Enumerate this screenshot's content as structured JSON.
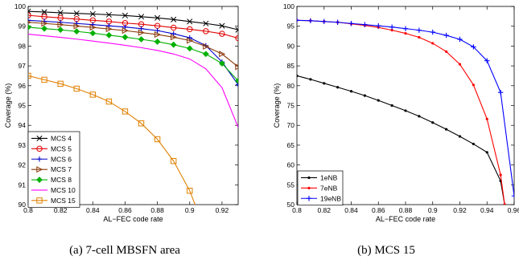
{
  "chart_data": [
    {
      "type": "line",
      "caption": "(a) 7-cell MBSFN area",
      "xlabel": "AL−FEC code rate",
      "ylabel": "Coverage (%)",
      "xlim": [
        0.8,
        0.93
      ],
      "ylim": [
        90,
        100
      ],
      "xticks": [
        "0.8",
        "0.82",
        "0.84",
        "0.86",
        "0.88",
        "0.9",
        "0.92"
      ],
      "yticks": [
        "90",
        "91",
        "92",
        "93",
        "94",
        "95",
        "96",
        "97",
        "98",
        "99",
        "100"
      ],
      "grid": false,
      "legend": "bottom-left",
      "x": [
        0.8,
        0.81,
        0.82,
        0.83,
        0.84,
        0.85,
        0.86,
        0.87,
        0.88,
        0.89,
        0.9,
        0.91,
        0.92,
        0.93
      ],
      "series": [
        {
          "name": "MCS 4",
          "color": "#000000",
          "marker": "x",
          "values": [
            99.75,
            99.72,
            99.68,
            99.65,
            99.62,
            99.58,
            99.54,
            99.48,
            99.42,
            99.34,
            99.24,
            99.14,
            99.02,
            98.82
          ]
        },
        {
          "name": "MCS 5",
          "color": "#e00000",
          "marker": "circle",
          "values": [
            99.55,
            99.48,
            99.42,
            99.36,
            99.3,
            99.24,
            99.16,
            99.1,
            99.02,
            98.93,
            98.85,
            98.75,
            98.62,
            98.4
          ]
        },
        {
          "name": "MCS 6",
          "color": "#0000cc",
          "marker": "plus",
          "values": [
            99.3,
            99.25,
            99.2,
            99.14,
            99.08,
            99.02,
            98.96,
            98.88,
            98.78,
            98.62,
            98.42,
            98.02,
            97.2,
            96.05
          ]
        },
        {
          "name": "MCS 7",
          "color": "#8b3a0a",
          "marker": "triangle",
          "values": [
            99.2,
            99.14,
            99.08,
            99.01,
            98.94,
            98.86,
            98.78,
            98.68,
            98.58,
            98.45,
            98.28,
            97.98,
            97.6,
            96.95
          ]
        },
        {
          "name": "MCS 8",
          "color": "#00b000",
          "marker": "diamond",
          "values": [
            98.95,
            98.88,
            98.82,
            98.74,
            98.65,
            98.55,
            98.45,
            98.34,
            98.22,
            98.07,
            97.88,
            97.6,
            97.12,
            96.25
          ]
        },
        {
          "name": "MCS 10",
          "color": "#ff00ff",
          "marker": "none",
          "values": [
            98.6,
            98.52,
            98.44,
            98.35,
            98.25,
            98.15,
            98.04,
            97.92,
            97.78,
            97.6,
            97.35,
            96.85,
            95.9,
            93.9
          ]
        },
        {
          "name": "MCS 15",
          "color": "#e08000",
          "marker": "square",
          "values": [
            96.5,
            96.3,
            96.1,
            95.85,
            95.55,
            95.2,
            94.7,
            94.1,
            93.3,
            92.2,
            90.7,
            88.6,
            null,
            null
          ]
        }
      ]
    },
    {
      "type": "line",
      "caption": "(b) MCS 15",
      "xlabel": "AL−FEC code rate",
      "ylabel": "Coverage (%)",
      "xlim": [
        0.8,
        0.96
      ],
      "ylim": [
        50,
        100
      ],
      "xticks": [
        "0.8",
        "0.82",
        "0.84",
        "0.86",
        "0.88",
        "0.9",
        "0.92",
        "0.94",
        "0.96"
      ],
      "yticks": [
        "50",
        "55",
        "60",
        "65",
        "70",
        "75",
        "80",
        "85",
        "90",
        "95",
        "100"
      ],
      "grid": false,
      "legend": "bottom-left",
      "series": [
        {
          "name": "1eNB",
          "color": "#000000",
          "marker": "dot",
          "x": [
            0.8,
            0.81,
            0.82,
            0.83,
            0.84,
            0.85,
            0.86,
            0.87,
            0.88,
            0.89,
            0.9,
            0.91,
            0.92,
            0.93,
            0.94,
            0.95,
            0.953
          ],
          "values": [
            82.5,
            81.6,
            80.6,
            79.6,
            78.6,
            77.5,
            76.3,
            75.0,
            73.7,
            72.3,
            70.7,
            69.0,
            67.2,
            65.3,
            63.2,
            56.0,
            50.0
          ]
        },
        {
          "name": "7eNB",
          "color": "#ff0000",
          "marker": "dot",
          "x": [
            0.8,
            0.81,
            0.82,
            0.83,
            0.84,
            0.85,
            0.86,
            0.87,
            0.88,
            0.89,
            0.9,
            0.91,
            0.92,
            0.93,
            0.94,
            0.95,
            0.953
          ],
          "values": [
            96.5,
            96.4,
            96.2,
            96.0,
            95.6,
            95.2,
            94.7,
            94.0,
            93.2,
            92.2,
            90.7,
            88.6,
            85.4,
            80.2,
            71.6,
            57.5,
            50.0
          ]
        },
        {
          "name": "19eNB",
          "color": "#0000ff",
          "marker": "plus",
          "x": [
            0.8,
            0.81,
            0.82,
            0.83,
            0.84,
            0.85,
            0.86,
            0.87,
            0.88,
            0.89,
            0.9,
            0.91,
            0.92,
            0.93,
            0.94,
            0.95,
            0.96
          ],
          "values": [
            96.5,
            96.4,
            96.2,
            96.0,
            95.7,
            95.4,
            95.1,
            94.8,
            94.4,
            94.0,
            93.5,
            92.7,
            91.7,
            89.8,
            86.3,
            78.3,
            52.2
          ]
        }
      ]
    }
  ]
}
